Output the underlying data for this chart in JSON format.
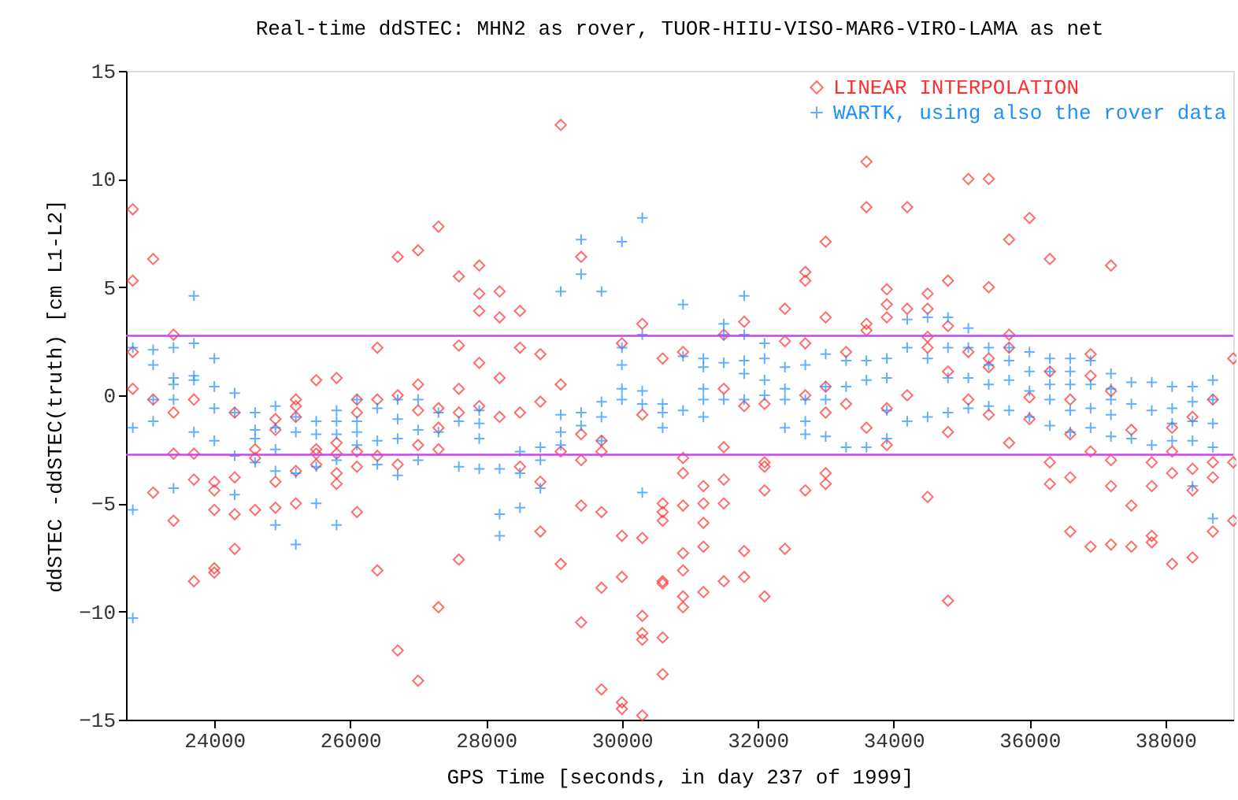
{
  "chart_data": {
    "type": "scatter",
    "title": "Real-time ddSTEC: MHN2 as rover, TUOR-HIIU-VISO-MAR6-VIRO-LAMA as net",
    "xlabel": "GPS Time [seconds, in day 237  of 1999]",
    "ylabel": "ddSTEC -ddSTEC(truth) [cm L1-L2]",
    "xlim": [
      22700,
      39000
    ],
    "xticks": [
      24000,
      26000,
      28000,
      30000,
      32000,
      34000,
      36000,
      38000
    ],
    "ylim": [
      -15,
      15
    ],
    "yticks": [
      -15,
      -10,
      -5,
      0,
      5,
      10,
      15
    ],
    "grid": false,
    "legend": "top right",
    "ref_lines": [
      {
        "axis": "y",
        "value": 2.75,
        "color": "#cc44ee"
      },
      {
        "axis": "y",
        "value": -2.75,
        "color": "#cc44ee"
      }
    ],
    "series": [
      {
        "name": "LINEAR INTERPOLATION",
        "color": "#ff3030",
        "marker": "diamond",
        "x": [
          22800,
          22800,
          22800,
          22800,
          23100,
          23100,
          23100,
          23400,
          23400,
          23400,
          23400,
          23700,
          23700,
          23700,
          23700,
          24000,
          24000,
          24000,
          24000,
          24000,
          24300,
          24300,
          24300,
          24300,
          24600,
          24600,
          24600,
          24900,
          24900,
          24900,
          24900,
          25200,
          25200,
          25200,
          25200,
          25200,
          25500,
          25500,
          25500,
          25500,
          25800,
          25800,
          25800,
          25800,
          25800,
          26100,
          26100,
          26100,
          26100,
          26100,
          26400,
          26400,
          26400,
          26400,
          26700,
          26700,
          26700,
          26700,
          27000,
          27000,
          27000,
          27000,
          27000,
          27300,
          27300,
          27300,
          27300,
          27300,
          27600,
          27600,
          27600,
          27600,
          27600,
          27900,
          27900,
          27900,
          27900,
          27900,
          28200,
          28200,
          28200,
          28200,
          28500,
          28500,
          28500,
          28500,
          28800,
          28800,
          28800,
          28800,
          29100,
          29100,
          29100,
          29100,
          29400,
          29400,
          29400,
          29400,
          29400,
          29700,
          29700,
          29700,
          29700,
          29700,
          30000,
          30000,
          30000,
          30000,
          30000,
          30300,
          30300,
          30300,
          30300,
          30300,
          30300,
          30300,
          30600,
          30600,
          30600,
          30600,
          30600,
          30600,
          30600,
          30600,
          30900,
          30900,
          30900,
          30900,
          30900,
          30900,
          30900,
          30900,
          31200,
          31200,
          31200,
          31200,
          31200,
          31500,
          31500,
          31500,
          31500,
          31500,
          31500,
          31800,
          31800,
          31800,
          31800,
          32100,
          32100,
          32100,
          32100,
          32100,
          32400,
          32400,
          32400,
          32700,
          32700,
          32700,
          32700,
          32700,
          33000,
          33000,
          33000,
          33000,
          33000,
          33000,
          33300,
          33300,
          33600,
          33600,
          33600,
          33600,
          33600,
          33900,
          33900,
          33900,
          33900,
          33900,
          34200,
          34200,
          34200,
          34500,
          34500,
          34500,
          34500,
          34500,
          34800,
          34800,
          34800,
          34800,
          34800,
          35100,
          35100,
          35100,
          35400,
          35400,
          35400,
          35400,
          35400,
          35700,
          35700,
          35700,
          35700,
          36000,
          36000,
          36000,
          36300,
          36300,
          36300,
          36300,
          36600,
          36600,
          36600,
          36600,
          36900,
          36900,
          36900,
          36900,
          37200,
          37200,
          37200,
          37200,
          37200,
          37500,
          37500,
          37500,
          37800,
          37800,
          37800,
          37800,
          38100,
          38100,
          38100,
          38100,
          38400,
          38400,
          38400,
          38400,
          38700,
          38700,
          38700,
          38700,
          39000,
          39000,
          39000
        ],
        "values": [
          8.6,
          5.3,
          2.0,
          0.3,
          6.3,
          -0.2,
          -4.5,
          2.8,
          -0.8,
          -2.7,
          -5.8,
          -0.2,
          -2.7,
          -3.9,
          -8.6,
          -4.0,
          -4.4,
          -5.3,
          -8.0,
          -8.2,
          -0.8,
          -3.8,
          -5.5,
          -7.1,
          -2.5,
          -2.9,
          -5.3,
          -1.1,
          -1.6,
          -4.0,
          -5.2,
          -0.2,
          -0.5,
          -1.0,
          -3.5,
          -5.0,
          0.7,
          -2.5,
          -2.7,
          -3.2,
          0.8,
          -2.2,
          -2.7,
          -3.6,
          -4.1,
          -0.2,
          -0.8,
          -2.6,
          -3.3,
          -5.4,
          2.2,
          -0.2,
          -2.8,
          -8.1,
          6.4,
          0,
          -3.2,
          -11.8,
          6.7,
          0.5,
          -0.7,
          -2.3,
          -13.2,
          7.8,
          -0.6,
          -1.5,
          -2.5,
          -9.8,
          5.5,
          2.3,
          0.3,
          -0.8,
          -7.6,
          6.0,
          4.7,
          3.9,
          1.5,
          -0.5,
          4.8,
          3.6,
          0.8,
          -1.0,
          3.9,
          2.2,
          -0.8,
          -3.3,
          1.9,
          -0.3,
          -4.0,
          -6.3,
          12.5,
          0.5,
          -2.6,
          -7.8,
          6.4,
          -1.8,
          -3.0,
          -5.1,
          -10.5,
          -2.1,
          -2.6,
          -5.4,
          -8.9,
          -13.6,
          2.4,
          -6.5,
          -8.4,
          -14.2,
          -14.5,
          3.3,
          -0.9,
          -6.6,
          -10.2,
          -11.0,
          -11.3,
          -14.8,
          1.7,
          -5.0,
          -5.4,
          -5.8,
          -8.6,
          -8.7,
          -11.2,
          -12.9,
          2.0,
          -2.9,
          -3.6,
          -5.1,
          -7.3,
          -8.1,
          -9.3,
          -9.8,
          -4.2,
          -5.0,
          -5.9,
          -7.0,
          -9.1,
          2.8,
          0.3,
          -2.4,
          -3.9,
          -5.0,
          -8.6,
          3.4,
          -0.5,
          -7.2,
          -8.4,
          -0.4,
          -3.1,
          -3.3,
          -4.4,
          -9.3,
          4.0,
          2.5,
          -7.1,
          5.7,
          5.3,
          2.4,
          0,
          -4.4,
          7.1,
          3.6,
          0.4,
          -0.8,
          -3.6,
          -4.1,
          2.0,
          -0.4,
          10.8,
          8.7,
          3.3,
          3.0,
          -1.5,
          4.9,
          4.2,
          3.6,
          -0.6,
          -2.3,
          8.7,
          4.0,
          0,
          4.7,
          4.0,
          2.7,
          2.2,
          -4.7,
          5.3,
          3.2,
          1.1,
          -1.7,
          -9.5,
          10.0,
          2.0,
          -0.2,
          10.0,
          5.0,
          1.7,
          1.3,
          -0.9,
          7.2,
          2.8,
          2.2,
          -2.2,
          8.2,
          -0.1,
          -1.1,
          6.3,
          1.1,
          -3.1,
          -4.1,
          -0.2,
          -1.8,
          -3.8,
          -6.3,
          1.9,
          0.9,
          -2.6,
          -7.0,
          6.0,
          0.2,
          -3.0,
          -4.2,
          -6.9,
          -1.6,
          -5.1,
          -7.0,
          -3.1,
          -4.2,
          -6.5,
          -6.8,
          -1.5,
          -2.6,
          -3.6,
          -7.8,
          -1.0,
          -3.4,
          -4.4,
          -7.5,
          -0.2,
          -3.1,
          -3.8,
          -6.3,
          1.7,
          -3.1,
          -5.8
        ]
      },
      {
        "name": "WARTK, using also the rover data",
        "color": "#1e90ff",
        "marker": "cross",
        "x": [
          22800,
          22800,
          22800,
          22800,
          23100,
          23100,
          23100,
          23100,
          23400,
          23400,
          23400,
          23400,
          23400,
          23700,
          23700,
          23700,
          23700,
          23700,
          24000,
          24000,
          24000,
          24000,
          24300,
          24300,
          24300,
          24300,
          24600,
          24600,
          24600,
          24600,
          24900,
          24900,
          24900,
          24900,
          24900,
          25200,
          25200,
          25200,
          25200,
          25500,
          25500,
          25500,
          25500,
          25800,
          25800,
          25800,
          25800,
          25800,
          26100,
          26100,
          26100,
          26100,
          26400,
          26400,
          26400,
          26700,
          26700,
          26700,
          26700,
          27000,
          27000,
          27000,
          27300,
          27300,
          27600,
          27600,
          27900,
          27900,
          27900,
          27900,
          28200,
          28200,
          28200,
          28500,
          28500,
          28500,
          28800,
          28800,
          28800,
          29100,
          29100,
          29100,
          29100,
          29400,
          29400,
          29400,
          29400,
          29700,
          29700,
          29700,
          29700,
          30000,
          30000,
          30000,
          30000,
          30000,
          30300,
          30300,
          30300,
          30300,
          30300,
          30600,
          30600,
          30600,
          30900,
          30900,
          30900,
          31200,
          31200,
          31200,
          31200,
          31200,
          31500,
          31500,
          31500,
          31500,
          31800,
          31800,
          31800,
          31800,
          31800,
          32100,
          32100,
          32100,
          32100,
          32400,
          32400,
          32400,
          32400,
          32700,
          32700,
          32700,
          32700,
          33000,
          33000,
          33000,
          33000,
          33300,
          33300,
          33300,
          33600,
          33600,
          33600,
          33900,
          33900,
          33900,
          33900,
          34200,
          34200,
          34200,
          34500,
          34500,
          34500,
          34800,
          34800,
          34800,
          34800,
          35100,
          35100,
          35100,
          35100,
          35400,
          35400,
          35400,
          35400,
          35700,
          35700,
          35700,
          35700,
          36000,
          36000,
          36000,
          36000,
          36300,
          36300,
          36300,
          36300,
          36300,
          36600,
          36600,
          36600,
          36600,
          36600,
          36900,
          36900,
          36900,
          36900,
          37200,
          37200,
          37200,
          37200,
          37200,
          37500,
          37500,
          37500,
          37800,
          37800,
          37800,
          38100,
          38100,
          38100,
          38100,
          38400,
          38400,
          38400,
          38400,
          38400,
          38700,
          38700,
          38700,
          38700,
          38700
        ],
        "values": [
          2.2,
          -1.5,
          -5.3,
          -10.3,
          2.1,
          1.4,
          -0.2,
          -1.2,
          2.2,
          0.8,
          0.5,
          -0.2,
          -4.3,
          4.6,
          2.4,
          0.9,
          0.7,
          -1.7,
          1.7,
          0.4,
          -0.6,
          -2.1,
          0.1,
          -0.8,
          -2.8,
          -4.6,
          -0.8,
          -1.6,
          -2.0,
          -3.1,
          -0.5,
          -1.5,
          -2.5,
          -3.5,
          -6.0,
          -1.0,
          -1.7,
          -3.6,
          -6.9,
          -1.2,
          -1.8,
          -3.3,
          -5.0,
          -0.7,
          -1.2,
          -1.8,
          -3.0,
          -6.0,
          -0.2,
          -1.2,
          -1.7,
          -2.3,
          -0.6,
          -2.1,
          -3.2,
          -0.2,
          -1.1,
          -2.0,
          -3.7,
          -0.2,
          -1.6,
          -3.0,
          -0.8,
          -1.7,
          -1.2,
          -3.3,
          -0.7,
          -1.3,
          -2.0,
          -3.4,
          -3.4,
          -5.5,
          -6.5,
          -2.6,
          -3.6,
          -5.2,
          -2.4,
          -3.0,
          -4.3,
          4.8,
          -0.9,
          -1.7,
          -2.3,
          7.2,
          5.6,
          -0.8,
          -1.4,
          4.8,
          -0.3,
          -1.0,
          -2.1,
          7.1,
          2.2,
          1.4,
          0.3,
          -0.2,
          8.2,
          2.8,
          0.2,
          -0.4,
          -4.5,
          -0.4,
          -0.8,
          -1.5,
          4.2,
          1.8,
          -0.7,
          1.7,
          1.3,
          0.3,
          -0.2,
          -1.0,
          3.3,
          2.8,
          1.5,
          -0.2,
          4.6,
          2.8,
          1.6,
          1.0,
          -0.2,
          2.4,
          1.7,
          0.7,
          0,
          1.3,
          0.3,
          -0.2,
          -1.5,
          1.4,
          -0.2,
          -1.2,
          -1.8,
          1.9,
          0.4,
          -0.2,
          -1.9,
          1.6,
          0.4,
          -2.4,
          1.6,
          0.7,
          -2.4,
          1.7,
          0.8,
          -0.7,
          -2.0,
          3.5,
          2.2,
          -1.2,
          3.6,
          1.7,
          -1.0,
          3.6,
          2.2,
          0.8,
          -0.8,
          3.1,
          2.2,
          0.8,
          -0.6,
          2.2,
          1.4,
          0.5,
          -0.5,
          2.2,
          1.6,
          0.7,
          -0.7,
          2.0,
          1.1,
          0.2,
          -1.0,
          1.7,
          1.1,
          0.5,
          -0.2,
          -1.4,
          1.7,
          1.1,
          0.5,
          -0.7,
          -1.7,
          1.6,
          0.5,
          -0.6,
          -1.5,
          1.0,
          0.3,
          -0.2,
          -0.9,
          -1.9,
          0.6,
          -0.4,
          -2.0,
          0.6,
          -0.7,
          -2.3,
          0.4,
          -0.6,
          -1.3,
          -2.1,
          0.4,
          -0.3,
          -1.2,
          -2.1,
          -4.2,
          0.7,
          -0.2,
          -1.3,
          -2.4,
          -5.7
        ]
      }
    ]
  }
}
